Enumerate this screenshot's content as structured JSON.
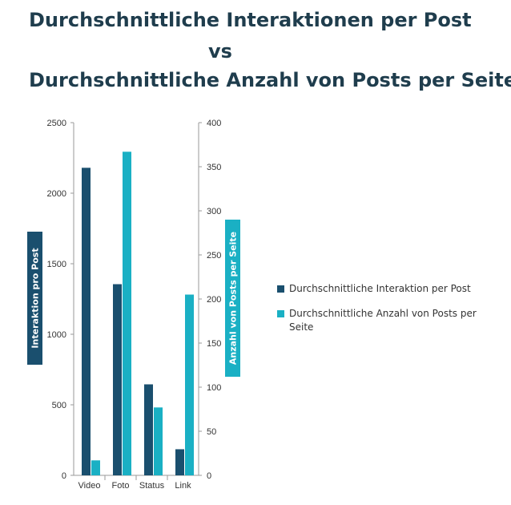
{
  "title": {
    "line1": "Durchschnittliche Interaktionen per Post",
    "line2": "vs",
    "line3": "Durchschnittliche Anzahl von Posts per Seite"
  },
  "chart_data": {
    "type": "bar",
    "categories": [
      "Video",
      "Foto",
      "Status",
      "Link"
    ],
    "series": [
      {
        "name": "Durchschnittliche Interaktion per Post",
        "axis": "left",
        "color": "#1a4f6e",
        "values": [
          2180,
          1355,
          645,
          185
        ]
      },
      {
        "name": "Durchschnittliche Anzahl von Posts per Seite",
        "axis": "right",
        "color": "#1ab0c4",
        "values": [
          17,
          367,
          77,
          205
        ]
      }
    ],
    "y_left": {
      "label": "Interaktion pro Post",
      "lim": [
        0,
        2500
      ],
      "ticks": [
        "0",
        "500",
        "1000",
        "1500",
        "2000",
        "2500"
      ]
    },
    "y_right": {
      "label": "Anzahl von Posts per Seite",
      "lim": [
        0,
        400
      ],
      "ticks": [
        "0",
        "50",
        "100",
        "150",
        "200",
        "250",
        "300",
        "350",
        "400"
      ]
    },
    "legend": {
      "position": "right",
      "items": [
        {
          "label": "Durchschnittliche Interaktion per Post",
          "color": "#1a4f6e"
        },
        {
          "label": "Durchschnittliche Anzahl von Posts per Seite",
          "color": "#1ab0c4"
        }
      ]
    },
    "grid": false
  }
}
